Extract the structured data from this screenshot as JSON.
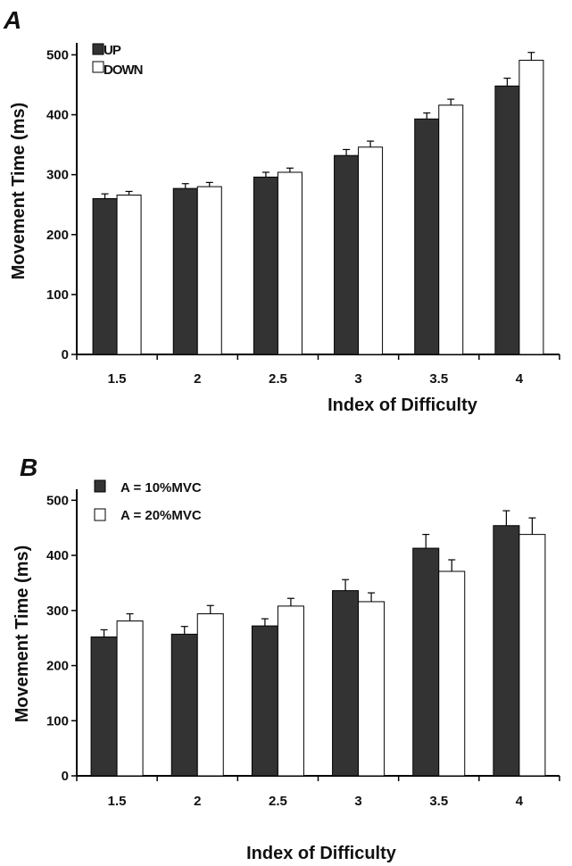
{
  "panels": [
    {
      "label": "A",
      "legend": [
        {
          "label": "UP",
          "color": "#333333"
        },
        {
          "label": "DOWN",
          "color": "#ffffff"
        }
      ]
    },
    {
      "label": "B",
      "legend": [
        {
          "label": "A = 10%MVC",
          "color": "#333333"
        },
        {
          "label": "A = 20%MVC",
          "color": "#ffffff"
        }
      ]
    }
  ],
  "chart_data": [
    {
      "type": "bar",
      "title": "",
      "xlabel": "Index of Difficulty",
      "ylabel": "Movement Time (ms)",
      "categories": [
        "1.5",
        "2",
        "2.5",
        "3",
        "3.5",
        "4"
      ],
      "ylim": [
        0,
        520
      ],
      "yticks": [
        "0",
        "100",
        "200",
        "300",
        "400",
        "500"
      ],
      "legend_position": "top-left",
      "series": [
        {
          "name": "UP",
          "color": "#333333",
          "values": [
            260,
            277,
            296,
            332,
            393,
            448
          ],
          "errors": [
            8,
            8,
            8,
            10,
            10,
            13
          ]
        },
        {
          "name": "DOWN",
          "color": "#ffffff",
          "values": [
            266,
            280,
            304,
            346,
            416,
            491
          ],
          "errors": [
            6,
            7,
            7,
            10,
            10,
            13
          ]
        }
      ]
    },
    {
      "type": "bar",
      "title": "",
      "xlabel": "Index of Difficulty",
      "ylabel": "Movement Time (ms)",
      "categories": [
        "1.5",
        "2",
        "2.5",
        "3",
        "3.5",
        "4"
      ],
      "ylim": [
        0,
        520
      ],
      "yticks": [
        "0",
        "100",
        "200",
        "300",
        "400",
        "500"
      ],
      "legend_position": "top-left",
      "series": [
        {
          "name": "A = 10%MVC",
          "color": "#333333",
          "values": [
            252,
            257,
            272,
            336,
            413,
            454
          ],
          "errors": [
            13,
            14,
            13,
            20,
            25,
            27
          ]
        },
        {
          "name": "A = 20%MVC",
          "color": "#ffffff",
          "values": [
            281,
            294,
            308,
            316,
            371,
            438
          ],
          "errors": [
            13,
            15,
            14,
            16,
            21,
            30
          ]
        }
      ]
    }
  ]
}
